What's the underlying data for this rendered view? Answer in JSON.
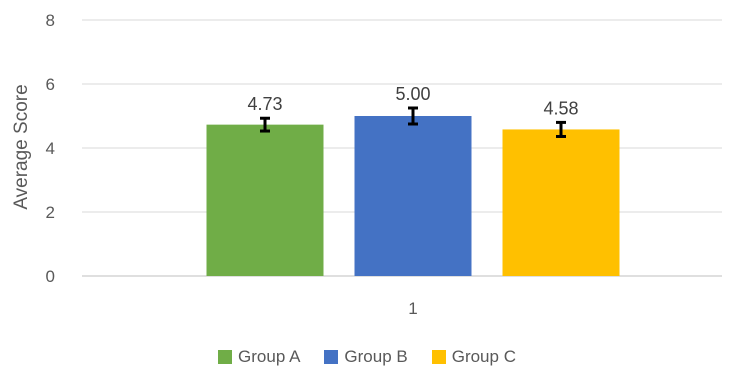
{
  "chart_data": {
    "type": "bar",
    "categories": [
      "1"
    ],
    "series": [
      {
        "name": "Group A",
        "values": [
          4.73
        ],
        "error": [
          0.2
        ],
        "label": "4.73",
        "color": "#70AD47"
      },
      {
        "name": "Group B",
        "values": [
          5.0
        ],
        "error": [
          0.25
        ],
        "label": "5.00",
        "color": "#4472C4"
      },
      {
        "name": "Group C",
        "values": [
          4.58
        ],
        "error": [
          0.22
        ],
        "label": "4.58",
        "color": "#FFC000"
      }
    ],
    "ylabel": "Average Score",
    "xlabel": "",
    "ylim": [
      0,
      8
    ],
    "yticks": [
      "0",
      "2",
      "4",
      "6",
      "8"
    ],
    "grid": true,
    "legend_position": "bottom"
  }
}
